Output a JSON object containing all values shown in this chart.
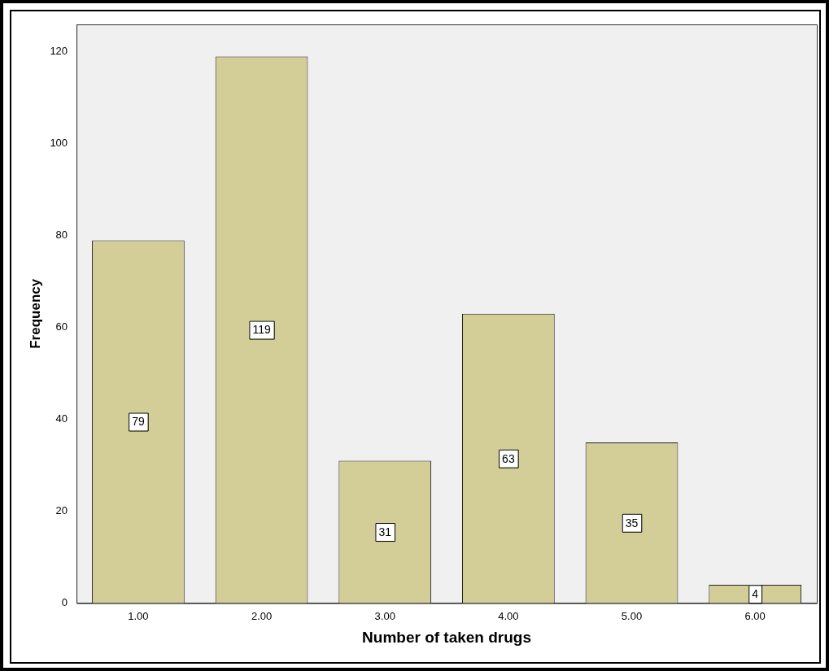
{
  "chart_data": {
    "type": "bar",
    "xlabel": "Number of taken drugs",
    "ylabel": "Frequency",
    "categories": [
      "1.00",
      "2.00",
      "3.00",
      "4.00",
      "5.00",
      "6.00"
    ],
    "values": [
      79,
      119,
      31,
      63,
      35,
      4
    ],
    "color": "#d3ce98",
    "ylim": [
      0,
      126
    ],
    "yticks": [
      0,
      20,
      40,
      60,
      80,
      100,
      120
    ],
    "grid": false,
    "data_labels": true
  }
}
